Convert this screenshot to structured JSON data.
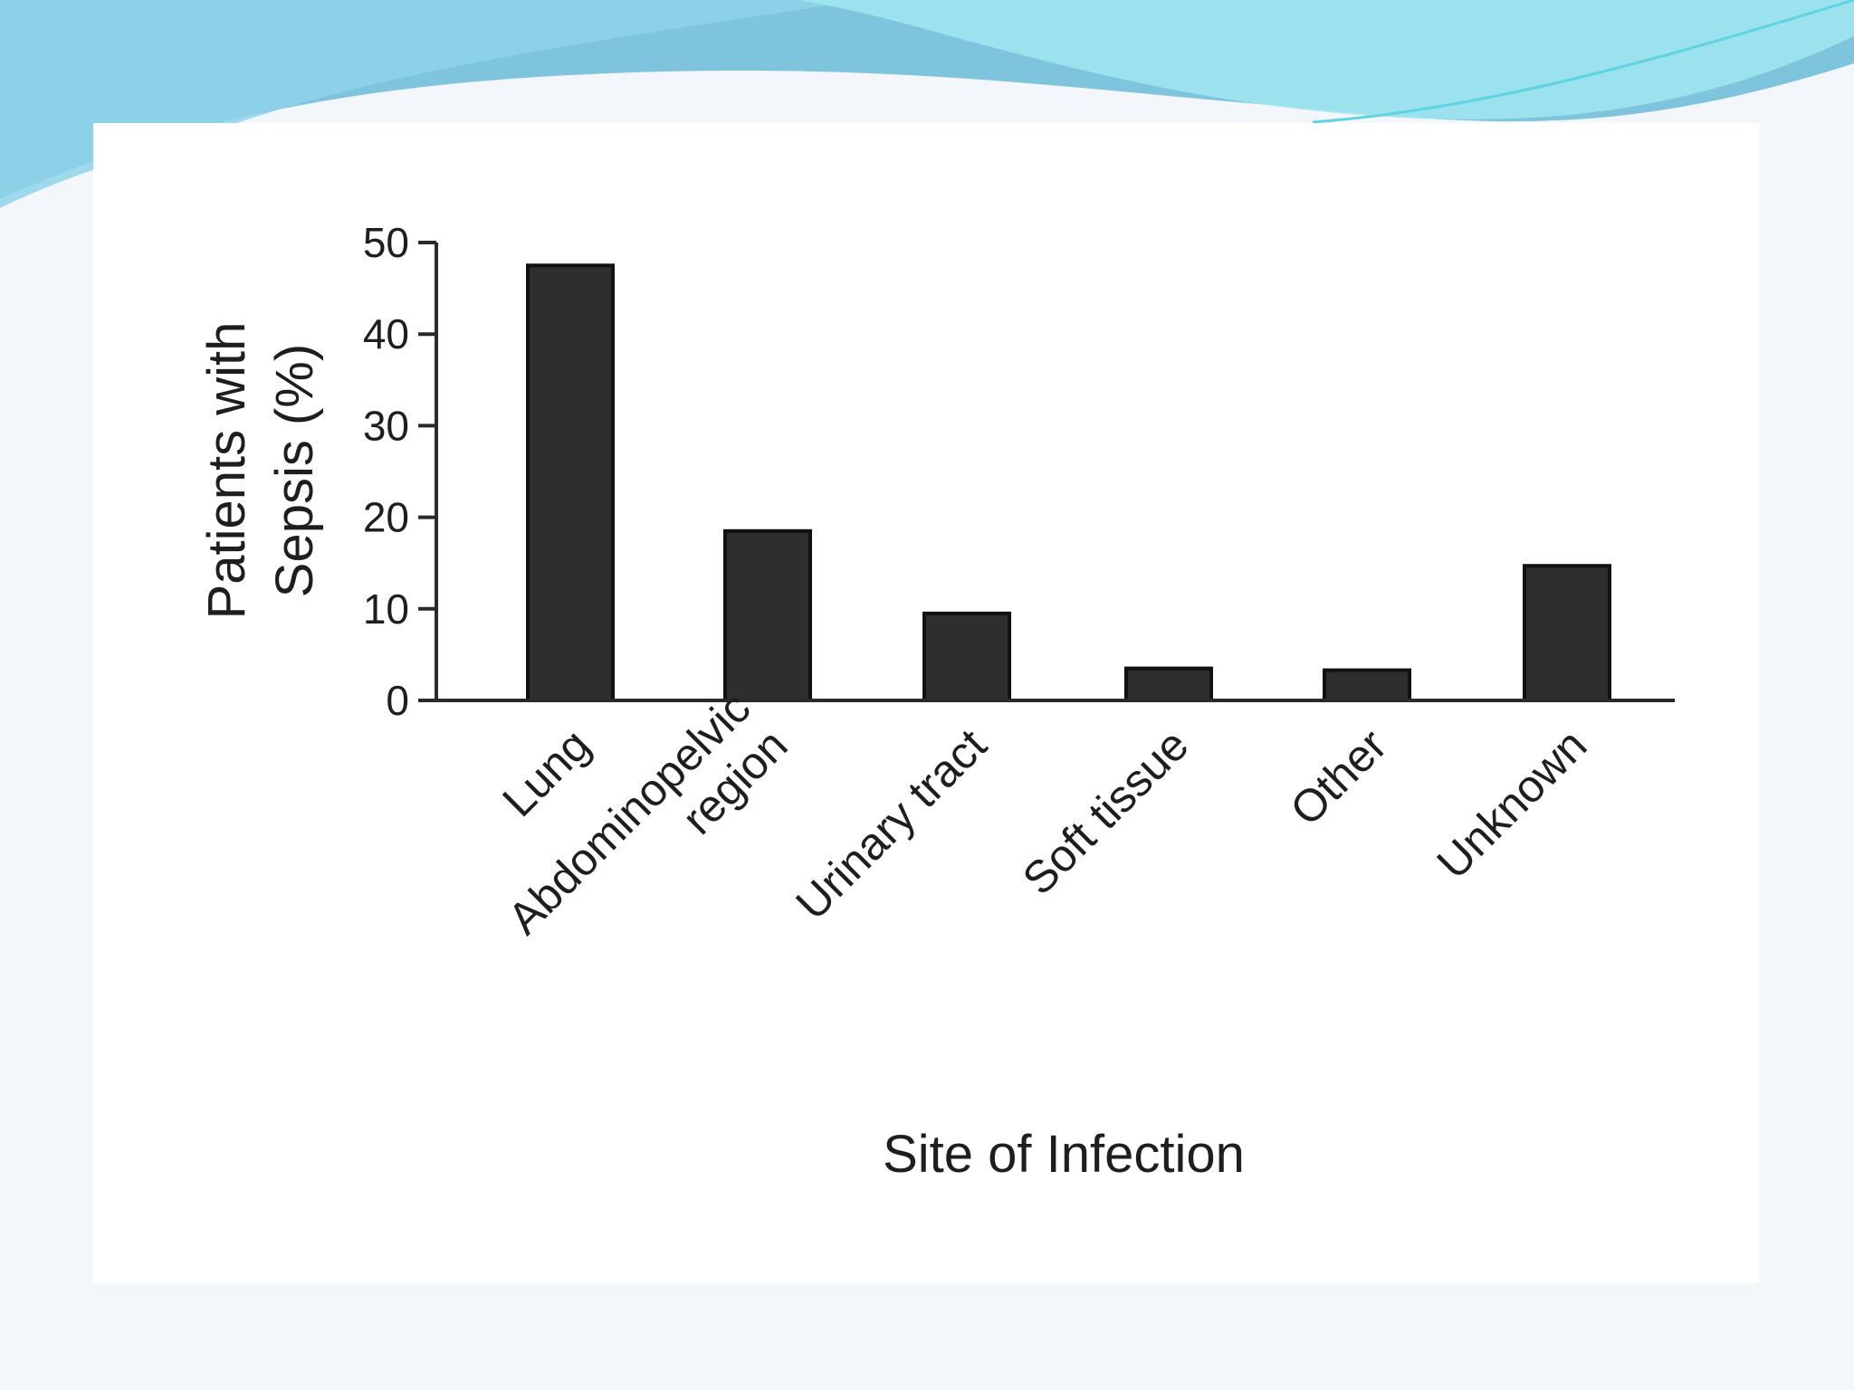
{
  "theme": {
    "accent_colors": [
      "#7fc4dd",
      "#5fd3e0",
      "#a9e7ef"
    ],
    "bar_color": "#2e2e2e"
  },
  "chart_data": {
    "type": "bar",
    "categories": [
      [
        "Lung"
      ],
      [
        "Abdominopelvic",
        "region"
      ],
      [
        "Urinary tract"
      ],
      [
        "Soft tissue"
      ],
      [
        "Other"
      ],
      [
        "Unknown"
      ]
    ],
    "values": [
      47.5,
      18.5,
      9.5,
      3.5,
      3.3,
      14.7
    ],
    "xlabel": "Site of Infection",
    "ylabel": [
      "Patients with",
      "Sepsis (%)"
    ],
    "ylim": [
      0,
      50
    ],
    "yticks": [
      0,
      10,
      20,
      30,
      40,
      50
    ],
    "grid": false,
    "legend": "none"
  }
}
